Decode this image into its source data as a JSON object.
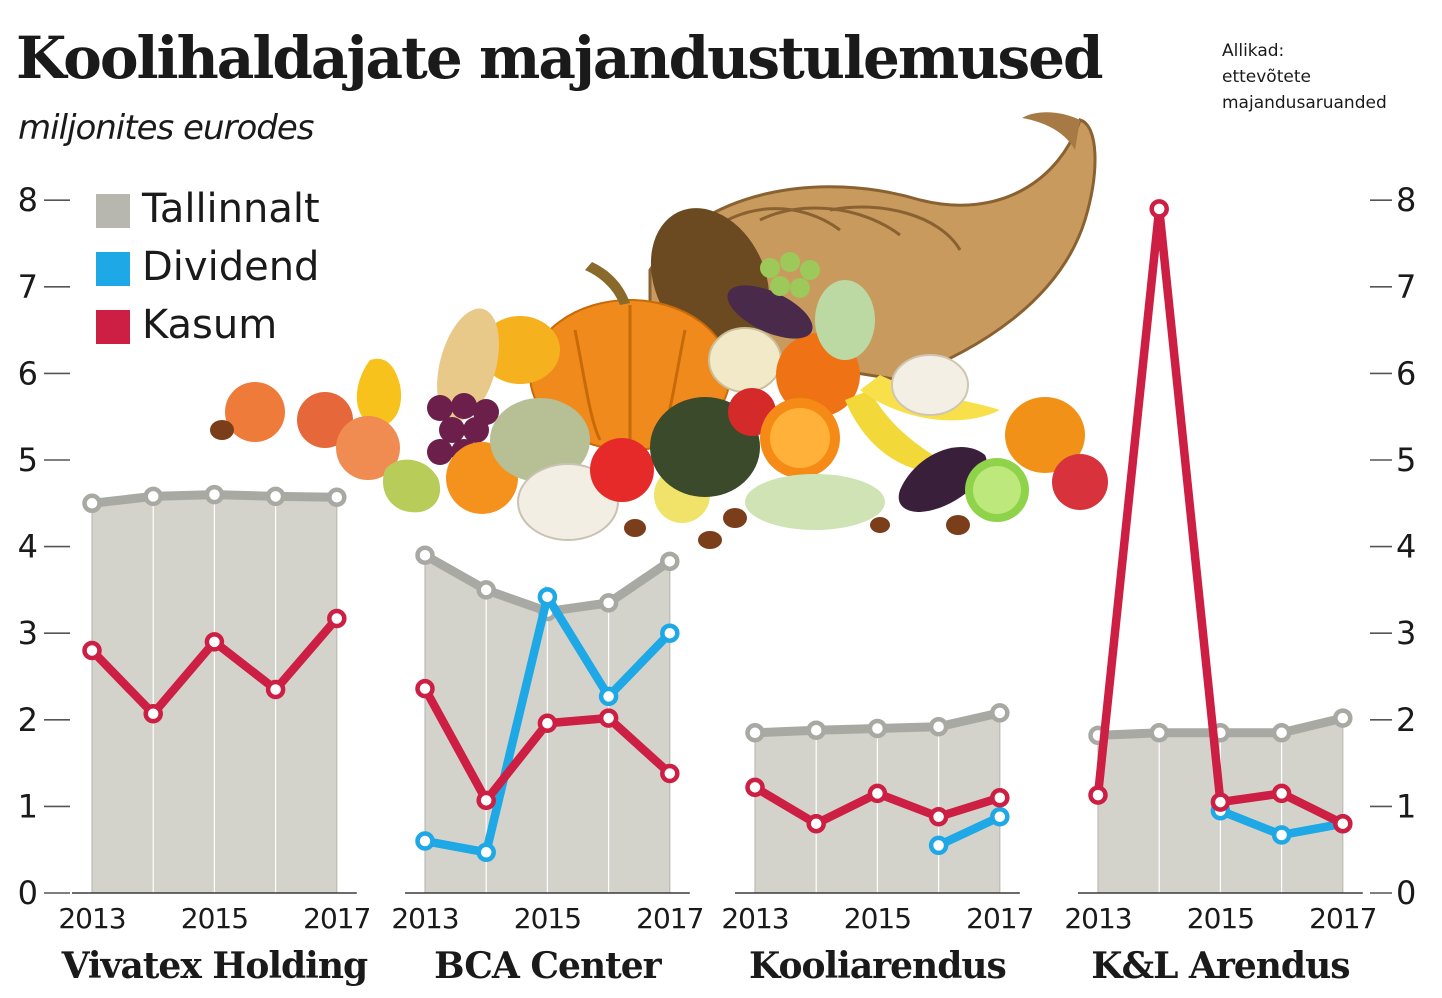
{
  "title": "Koolihaldajate majandustulemused",
  "subtitle": "miljonites eurodes",
  "source": {
    "label": "Allikad:",
    "lines": [
      "ettevõtete",
      "majandusaruanded"
    ]
  },
  "legend": [
    {
      "label": "Tallinnalt",
      "color": "#c8c7bf"
    },
    {
      "label": "Dividend",
      "color": "#1ea8e6"
    },
    {
      "label": "Kasum",
      "color": "#cc1f43"
    }
  ],
  "chart_data": {
    "type": "line",
    "y_ticks": [
      "0",
      "1",
      "2",
      "3",
      "4",
      "5",
      "6",
      "7",
      "8"
    ],
    "ylim": [
      0,
      8
    ],
    "x": [
      2013,
      2014,
      2015,
      2016,
      2017
    ],
    "x_tick_labels": [
      "2013",
      "2015",
      "2017"
    ],
    "panels": [
      {
        "company": "Vivatex Holding",
        "series": [
          {
            "name": "Tallinnalt",
            "type": "area",
            "values": [
              4.5,
              4.58,
              4.6,
              4.58,
              4.57
            ]
          },
          {
            "name": "Kasum",
            "type": "line",
            "values": [
              2.8,
              2.07,
              2.9,
              2.35,
              3.17
            ]
          }
        ]
      },
      {
        "company": "BCA Center",
        "series": [
          {
            "name": "Tallinnalt",
            "type": "area",
            "values": [
              3.9,
              3.5,
              3.25,
              3.35,
              3.83
            ]
          },
          {
            "name": "Dividend",
            "type": "line",
            "values": [
              0.6,
              0.47,
              3.42,
              2.27,
              3.0
            ]
          },
          {
            "name": "Kasum",
            "type": "line",
            "values": [
              2.36,
              1.07,
              1.96,
              2.02,
              1.38
            ]
          }
        ]
      },
      {
        "company": "Kooliarendus",
        "series": [
          {
            "name": "Tallinnalt",
            "type": "area",
            "values": [
              1.85,
              1.88,
              1.9,
              1.92,
              2.08
            ]
          },
          {
            "name": "Dividend",
            "type": "line",
            "values": [
              null,
              null,
              null,
              0.55,
              0.88
            ]
          },
          {
            "name": "Kasum",
            "type": "line",
            "values": [
              1.22,
              0.8,
              1.15,
              0.88,
              1.1
            ]
          }
        ]
      },
      {
        "company": "K&L Arendus",
        "series": [
          {
            "name": "Tallinnalt",
            "type": "area",
            "values": [
              1.82,
              1.85,
              1.85,
              1.85,
              2.02
            ]
          },
          {
            "name": "Dividend",
            "type": "line",
            "values": [
              null,
              null,
              0.95,
              0.67,
              0.8
            ]
          },
          {
            "name": "Kasum",
            "type": "line",
            "values": [
              1.13,
              7.9,
              1.05,
              1.15,
              0.8
            ]
          }
        ]
      }
    ]
  }
}
